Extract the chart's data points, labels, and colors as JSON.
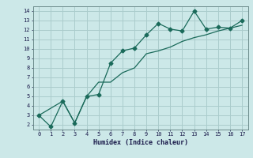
{
  "xlabel": "Humidex (Indice chaleur)",
  "bg_color": "#cce8e8",
  "grid_color": "#aacccc",
  "line_color": "#1a6a5a",
  "marker_color": "#1a6a5a",
  "curve1_x": [
    0,
    1,
    2,
    3,
    4,
    5,
    6,
    7,
    8,
    9,
    10,
    11,
    12,
    13,
    14,
    15,
    16,
    17
  ],
  "curve1_y": [
    3.0,
    1.8,
    4.5,
    2.2,
    5.0,
    5.2,
    8.5,
    9.8,
    10.1,
    11.5,
    12.7,
    12.1,
    11.9,
    14.0,
    12.1,
    12.3,
    12.2,
    13.0
  ],
  "curve2_x": [
    0,
    2,
    3,
    4,
    5,
    6,
    7,
    8,
    9,
    10,
    11,
    12,
    13,
    14,
    15,
    16,
    17
  ],
  "curve2_y": [
    3.0,
    4.5,
    2.2,
    5.0,
    6.5,
    6.5,
    7.5,
    8.0,
    9.5,
    9.8,
    10.2,
    10.8,
    11.2,
    11.5,
    11.9,
    12.2,
    12.5
  ],
  "xlim": [
    -0.5,
    17.5
  ],
  "ylim": [
    1.5,
    14.5
  ],
  "xticks": [
    0,
    1,
    2,
    3,
    4,
    5,
    6,
    7,
    8,
    9,
    10,
    11,
    12,
    13,
    14,
    15,
    16,
    17
  ],
  "yticks": [
    2,
    3,
    4,
    5,
    6,
    7,
    8,
    9,
    10,
    11,
    12,
    13,
    14
  ]
}
